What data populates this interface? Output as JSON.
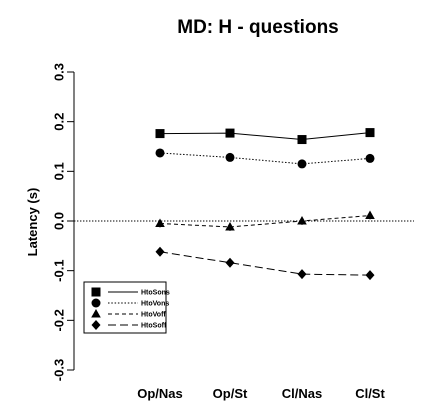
{
  "chart_data": {
    "type": "line",
    "title": "MD: H - questions",
    "xlabel": "",
    "ylabel": "Latency (s)",
    "categories": [
      "Op/Nas",
      "Op/St",
      "Cl/Nas",
      "Cl/St"
    ],
    "ylim": [
      -0.3,
      0.3
    ],
    "yticks": [
      -0.3,
      -0.2,
      -0.1,
      0.0,
      0.1,
      0.2,
      0.3
    ],
    "ytick_labels": [
      "-0.3",
      "-0.2",
      "-0.1",
      "0.0",
      "0.1",
      "0.2",
      "0.3"
    ],
    "reference_line": 0.0,
    "grid": false,
    "legend_position": "bottom-left",
    "series": [
      {
        "name": "HtoSons",
        "values": [
          0.176,
          0.177,
          0.164,
          0.178
        ],
        "marker": "square",
        "line": "solid"
      },
      {
        "name": "HtoVons",
        "values": [
          0.137,
          0.128,
          0.115,
          0.126
        ],
        "marker": "circle",
        "line": "dotted"
      },
      {
        "name": "HtoVoff",
        "values": [
          -0.005,
          -0.012,
          0.0,
          0.011
        ],
        "marker": "triangle",
        "line": "dashed"
      },
      {
        "name": "HtoSoff",
        "values": [
          -0.062,
          -0.084,
          -0.107,
          -0.109
        ],
        "marker": "diamond",
        "line": "longdash"
      }
    ]
  }
}
